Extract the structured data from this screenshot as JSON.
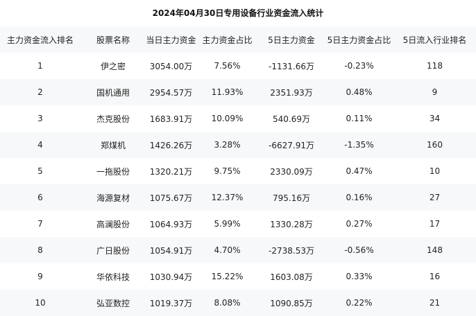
{
  "title": "2024年04月30日专用设备行业资金流入统计",
  "columns": [
    "主力资金流入排名",
    "股票名称",
    "当日主力资金",
    "主力资金占比",
    "5日主力资金",
    "5日主力资金占比",
    "5日流入行业排名"
  ],
  "rows": [
    [
      "1",
      "伊之密",
      "3054.00万",
      "7.56%",
      "-1131.66万",
      "-0.23%",
      "118"
    ],
    [
      "2",
      "国机通用",
      "2954.57万",
      "11.93%",
      "2351.93万",
      "0.48%",
      "9"
    ],
    [
      "3",
      "杰克股份",
      "1683.91万",
      "10.09%",
      "540.69万",
      "0.11%",
      "34"
    ],
    [
      "4",
      "郑煤机",
      "1426.26万",
      "3.28%",
      "-6627.91万",
      "-1.35%",
      "160"
    ],
    [
      "5",
      "一拖股份",
      "1320.21万",
      "9.75%",
      "2330.09万",
      "0.47%",
      "10"
    ],
    [
      "6",
      "海源复材",
      "1075.67万",
      "12.37%",
      "795.16万",
      "0.16%",
      "27"
    ],
    [
      "7",
      "高澜股份",
      "1064.93万",
      "5.99%",
      "1330.28万",
      "0.27%",
      "17"
    ],
    [
      "8",
      "广日股份",
      "1054.91万",
      "4.70%",
      "-2738.53万",
      "-0.56%",
      "148"
    ],
    [
      "9",
      "华依科技",
      "1030.94万",
      "15.22%",
      "1603.08万",
      "0.33%",
      "16"
    ],
    [
      "10",
      "弘亚数控",
      "1019.37万",
      "8.08%",
      "1090.85万",
      "0.22%",
      "21"
    ]
  ]
}
